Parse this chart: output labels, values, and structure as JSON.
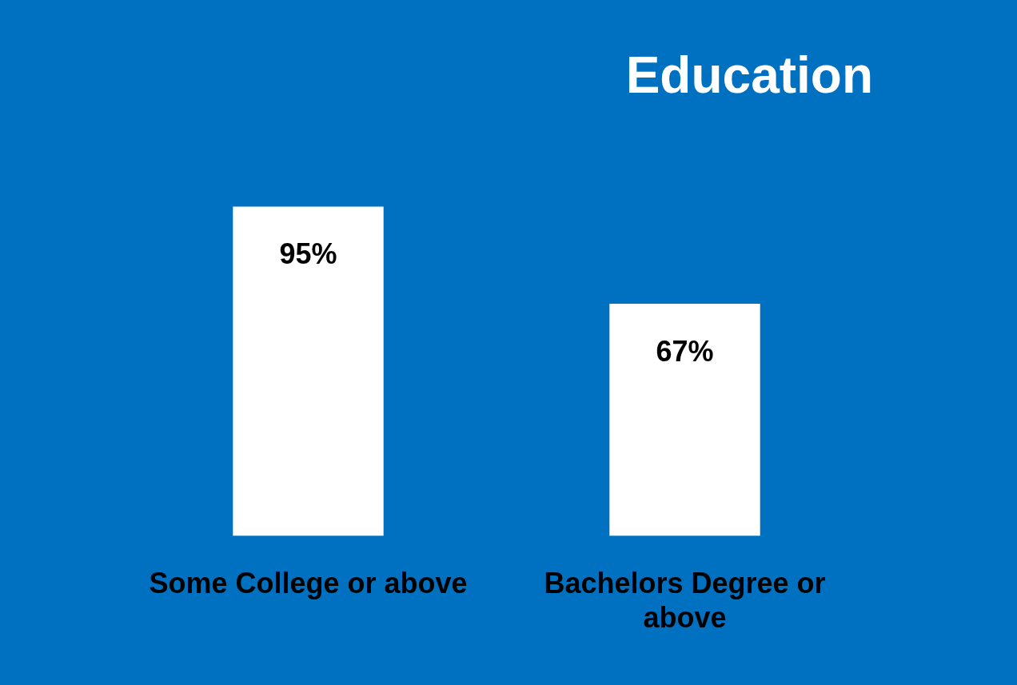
{
  "chart_data": {
    "type": "bar",
    "title": "Education",
    "categories": [
      "Some College or above",
      "Bachelors Degree or above"
    ],
    "values": [
      95,
      67
    ],
    "color": "#ffffff",
    "value_labels": [
      "95%",
      "67%"
    ],
    "grid": false,
    "legend": false
  }
}
